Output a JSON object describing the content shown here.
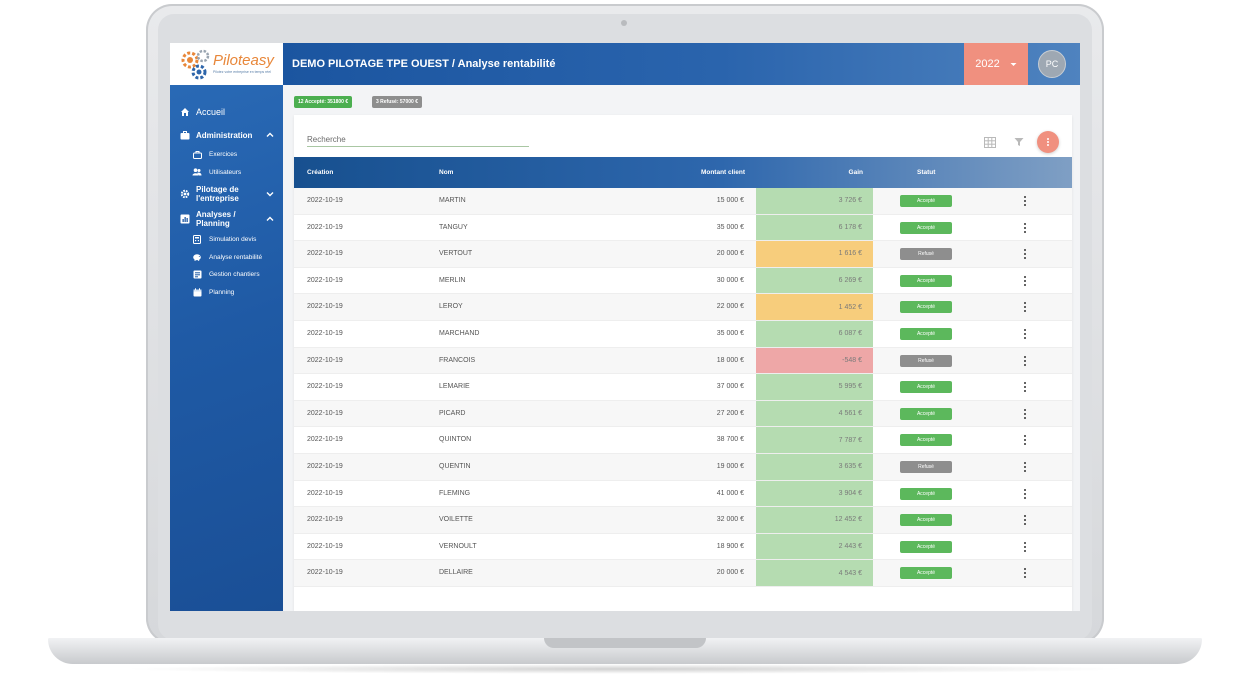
{
  "app": {
    "logo_text": "Piloteasy",
    "logo_tagline": "Pilotez votre entreprise en temps réel"
  },
  "sidebar": {
    "items": [
      {
        "label": "Accueil",
        "icon": "home-icon"
      },
      {
        "label": "Administration",
        "icon": "briefcase-icon"
      },
      {
        "label": "Exercices",
        "icon": "briefcase-icon"
      },
      {
        "label": "Utilisateurs",
        "icon": "users-icon"
      },
      {
        "label": "Pilotage de l'entreprise",
        "label_line1": "Pilotage de",
        "label_line2": "l'entreprise",
        "icon": "gear-icon"
      },
      {
        "label": "Analyses / Planning",
        "label_line1": "Analyses /",
        "label_line2": "Planning",
        "icon": "chart-icon"
      },
      {
        "label": "Simulation devis",
        "icon": "calculator-icon"
      },
      {
        "label": "Analyse rentabilité",
        "icon": "piggy-bank-icon"
      },
      {
        "label": "Gestion chantiers",
        "icon": "list-icon"
      },
      {
        "label": "Planning",
        "icon": "calendar-icon"
      }
    ]
  },
  "header": {
    "title": "DEMO PILOTAGE TPE OUEST / Analyse rentabilité",
    "year": "2022",
    "avatar_initials": "PC"
  },
  "summary": {
    "accepted": "12 Accepté: 351800 €",
    "refused": "3 Refusé: 57000 €"
  },
  "search": {
    "placeholder": "Recherche"
  },
  "table": {
    "columns": {
      "created": "Création",
      "name": "Nom",
      "amount": "Montant client",
      "gain": "Gain",
      "status": "Statut"
    },
    "rows": [
      {
        "date": "2022-10-19",
        "name": "MARTIN",
        "amount": "15 000 €",
        "gain": "3 726 €",
        "gain_level": "green",
        "status": "Accepté"
      },
      {
        "date": "2022-10-19",
        "name": "TANGUY",
        "amount": "35 000 €",
        "gain": "6 178 €",
        "gain_level": "green",
        "status": "Accepté"
      },
      {
        "date": "2022-10-19",
        "name": "VERTOUT",
        "amount": "20 000 €",
        "gain": "1 616 €",
        "gain_level": "orange",
        "status": "Refusé"
      },
      {
        "date": "2022-10-19",
        "name": "MERLIN",
        "amount": "30 000 €",
        "gain": "6 269 €",
        "gain_level": "green",
        "status": "Accepté"
      },
      {
        "date": "2022-10-19",
        "name": "LEROY",
        "amount": "22 000 €",
        "gain": "1 452 €",
        "gain_level": "orange",
        "status": "Accepté"
      },
      {
        "date": "2022-10-19",
        "name": "MARCHAND",
        "amount": "35 000 €",
        "gain": "6 087 €",
        "gain_level": "green",
        "status": "Accepté"
      },
      {
        "date": "2022-10-19",
        "name": "FRANCOIS",
        "amount": "18 000 €",
        "gain": "-548 €",
        "gain_level": "red",
        "status": "Refusé"
      },
      {
        "date": "2022-10-19",
        "name": "LEMARIE",
        "amount": "37 000 €",
        "gain": "5 995 €",
        "gain_level": "green",
        "status": "Accepté"
      },
      {
        "date": "2022-10-19",
        "name": "PICARD",
        "amount": "27 200 €",
        "gain": "4 561 €",
        "gain_level": "green",
        "status": "Accepté"
      },
      {
        "date": "2022-10-19",
        "name": "QUINTON",
        "amount": "38 700 €",
        "gain": "7 787 €",
        "gain_level": "green",
        "status": "Accepté"
      },
      {
        "date": "2022-10-19",
        "name": "QUENTIN",
        "amount": "19 000 €",
        "gain": "3 635 €",
        "gain_level": "green",
        "status": "Refusé"
      },
      {
        "date": "2022-10-19",
        "name": "FLEMING",
        "amount": "41 000 €",
        "gain": "3 904 €",
        "gain_level": "green",
        "status": "Accepté"
      },
      {
        "date": "2022-10-19",
        "name": "VOILETTE",
        "amount": "32 000 €",
        "gain": "12 452 €",
        "gain_level": "green",
        "status": "Accepté"
      },
      {
        "date": "2022-10-19",
        "name": "VERNOULT",
        "amount": "18 900 €",
        "gain": "2 443 €",
        "gain_level": "green",
        "status": "Accepté"
      },
      {
        "date": "2022-10-19",
        "name": "DELLAIRE",
        "amount": "20 000 €",
        "gain": "4 543 €",
        "gain_level": "green",
        "status": "Accepté"
      }
    ]
  },
  "colors": {
    "sidebar_blue": "#1f5aa5",
    "accent_salmon": "#f0907f",
    "gain_green": "#b5dcb1",
    "gain_orange": "#f7cd7c",
    "gain_red": "#eea7a7",
    "status_accepted": "#5cb85c",
    "status_refused": "#8e8e8e"
  }
}
